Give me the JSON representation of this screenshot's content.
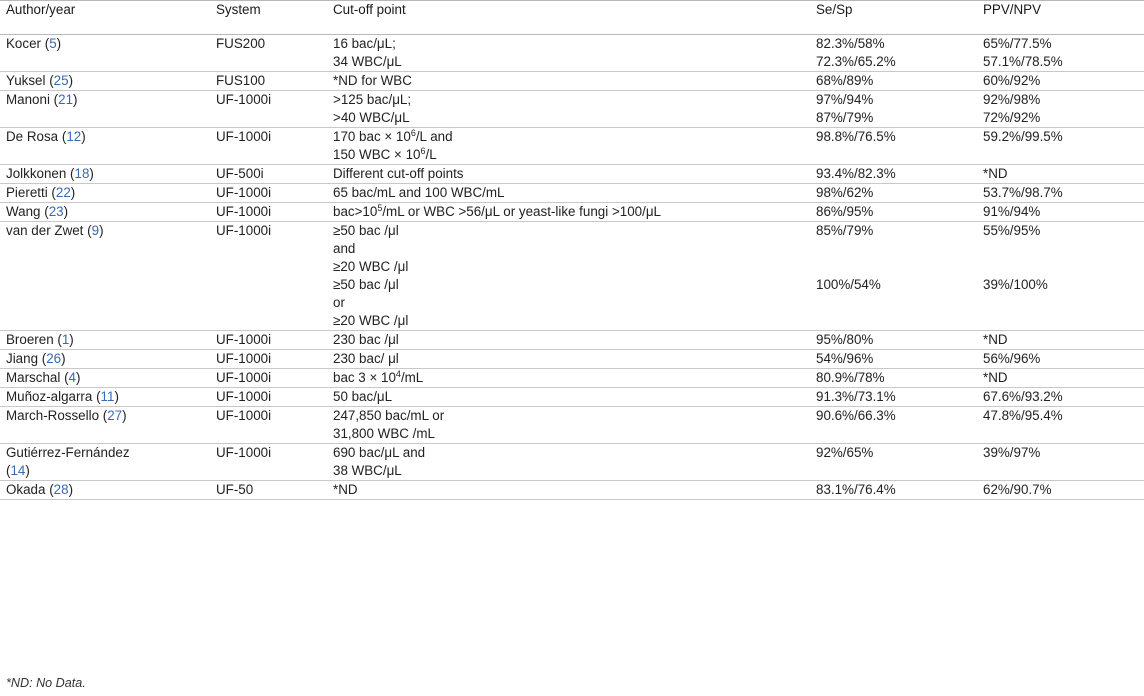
{
  "headers": {
    "author": "Author/year",
    "system": "System",
    "cutoff": "Cut-off point",
    "sesp": "Se/Sp",
    "ppvnpv": "PPV/NPV"
  },
  "rows": [
    {
      "author": "Kocer",
      "ref": "5",
      "system": "FUS200",
      "cutoff": [
        "16 bac/μL;",
        "34 WBC/μL"
      ],
      "sesp": [
        "82.3%/58%",
        "72.3%/65.2%"
      ],
      "ppv": [
        "65%/77.5%",
        "57.1%/78.5%"
      ]
    },
    {
      "author": "Yuksel",
      "ref": "25",
      "system": "FUS100",
      "cutoff": [
        "*ND for WBC"
      ],
      "sesp": [
        "68%/89%"
      ],
      "ppv": [
        "60%/92%"
      ]
    },
    {
      "author": "Manoni",
      "ref": "21",
      "system": "UF-1000i",
      "cutoff": [
        ">125 bac/μL;",
        ">40 WBC/μL"
      ],
      "sesp": [
        "97%/94%",
        "87%/79%"
      ],
      "ppv": [
        "92%/98%",
        "72%/92%"
      ]
    },
    {
      "author": "De Rosa",
      "ref": "12",
      "system": "UF-1000i",
      "cutoff": [
        "170 bac × 10^6/L and",
        "150 WBC × 10^6/L"
      ],
      "sesp": [
        "98.8%/76.5%"
      ],
      "ppv": [
        "59.2%/99.5%"
      ]
    },
    {
      "author": "Jolkkonen",
      "ref": "18",
      "system": "UF-500i",
      "cutoff": [
        "Different cut-off points"
      ],
      "sesp": [
        "93.4%/82.3%"
      ],
      "ppv": [
        "*ND"
      ]
    },
    {
      "author": "Pieretti",
      "ref": "22",
      "system": "UF-1000i",
      "cutoff": [
        "65 bac/mL and 100 WBC/mL"
      ],
      "sesp": [
        "98%/62%"
      ],
      "ppv": [
        "53.7%/98.7%"
      ]
    },
    {
      "author": "Wang",
      "ref": "23",
      "system": "UF-1000i",
      "cutoff": [
        "bac>10^5/mL or WBC >56/μL or yeast-like fungi >100/μL"
      ],
      "sesp": [
        "86%/95%"
      ],
      "ppv": [
        "91%/94%"
      ]
    },
    {
      "author": "van der Zwet",
      "ref": "9",
      "system": "UF-1000i",
      "cutoff": [
        "≥50 bac /μl",
        "and",
        "≥20 WBC /μl",
        "≥50 bac /μl",
        "or",
        "≥20 WBC /μl"
      ],
      "sesp": [
        "85%/79%",
        "",
        "",
        "100%/54%"
      ],
      "ppv": [
        "55%/95%",
        "",
        "",
        "39%/100%"
      ]
    },
    {
      "author": "Broeren",
      "ref": "1",
      "system": "UF-1000i",
      "cutoff": [
        "230 bac /μl"
      ],
      "sesp": [
        "95%/80%"
      ],
      "ppv": [
        "*ND"
      ]
    },
    {
      "author": "Jiang",
      "ref": "26",
      "system": "UF-1000i",
      "cutoff": [
        "230 bac/ μl"
      ],
      "sesp": [
        "54%/96%"
      ],
      "ppv": [
        "56%/96%"
      ]
    },
    {
      "author": "Marschal",
      "ref": "4",
      "system": "UF-1000i",
      "cutoff": [
        "bac 3 × 10^4/mL"
      ],
      "sesp": [
        "80.9%/78%"
      ],
      "ppv": [
        "*ND"
      ]
    },
    {
      "author": "Muñoz-algarra",
      "ref": "11",
      "system": "UF-1000i",
      "cutoff": [
        "50 bac/μL"
      ],
      "sesp": [
        "91.3%/73.1%"
      ],
      "ppv": [
        "67.6%/93.2%"
      ]
    },
    {
      "author": "March-Rossello",
      "ref": "27",
      "system": "UF-1000i",
      "cutoff": [
        "247,850 bac/mL or",
        "31,800 WBC /mL"
      ],
      "sesp": [
        "90.6%/66.3%"
      ],
      "ppv": [
        "47.8%/95.4%"
      ]
    },
    {
      "author": "Gutiérrez-Fernández",
      "ref": "14",
      "author_wrap": true,
      "system": "UF-1000i",
      "cutoff": [
        "690 bac/μL and",
        "38 WBC/μL"
      ],
      "sesp": [
        "92%/65%"
      ],
      "ppv": [
        "39%/97%"
      ]
    },
    {
      "author": "Okada",
      "ref": "28",
      "system": "UF-50",
      "cutoff": [
        "*ND"
      ],
      "sesp": [
        "83.1%/76.4%"
      ],
      "ppv": [
        "62%/90.7%"
      ]
    }
  ],
  "footnote": "*ND: No Data."
}
